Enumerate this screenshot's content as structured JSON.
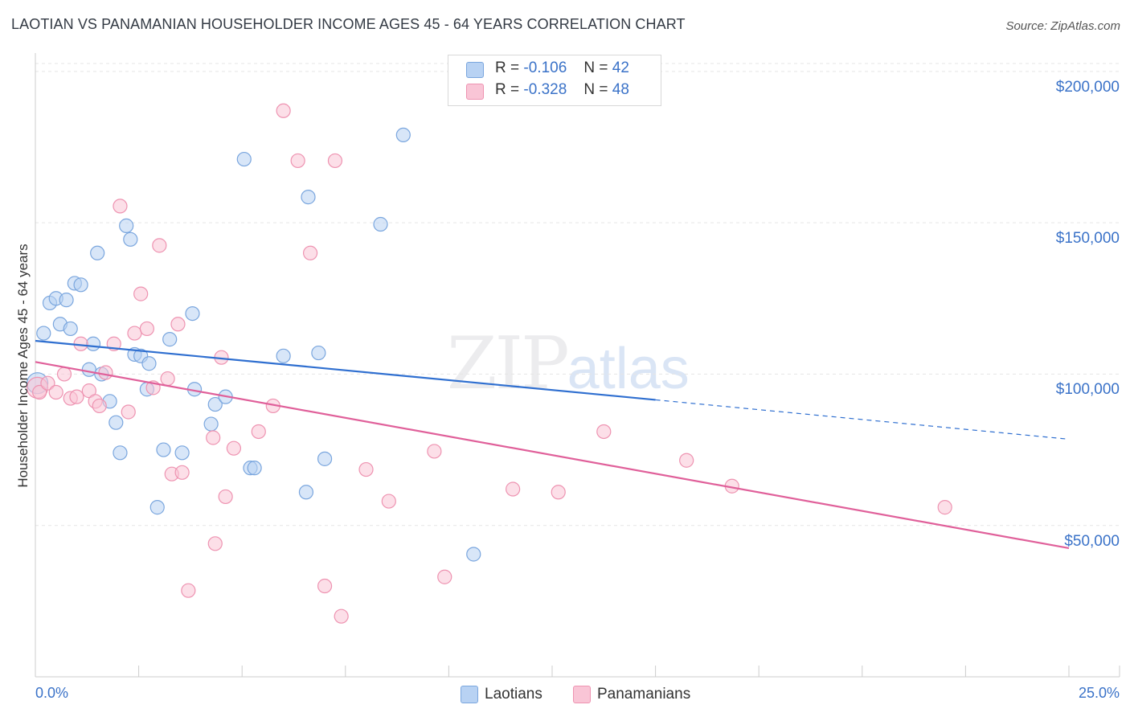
{
  "header": {
    "title": "LAOTIAN VS PANAMANIAN HOUSEHOLDER INCOME AGES 45 - 64 YEARS CORRELATION CHART",
    "source": "Source: ZipAtlas.com"
  },
  "watermark": {
    "zip": "ZIP",
    "atlas": "atlas"
  },
  "legend": {
    "rows": [
      {
        "r_label": "R =",
        "r_value": "-0.106",
        "n_label": "N =",
        "n_value": "42"
      },
      {
        "r_label": "R =",
        "r_value": "-0.328",
        "n_label": "N =",
        "n_value": "48"
      }
    ],
    "bottom": [
      "Laotians",
      "Panamanians"
    ]
  },
  "colors": {
    "laotian_fill": "#b8d2f3",
    "laotian_stroke": "#7aa6de",
    "laotian_line": "#2f6fd0",
    "panamanian_fill": "#f9c5d6",
    "panamanian_stroke": "#ee93b1",
    "panamanian_line": "#e0609a",
    "value_text": "#3a72c8",
    "grid": "#e5e5e5"
  },
  "chart_data": {
    "type": "scatter",
    "title": "LAOTIAN VS PANAMANIAN HOUSEHOLDER INCOME AGES 45 - 64 YEARS CORRELATION CHART",
    "xlabel": "",
    "ylabel": "Householder Income Ages 45 - 64 years",
    "xlim": [
      0,
      25
    ],
    "ylim": [
      0,
      205000
    ],
    "x_tick_labels": [
      "0.0%",
      "25.0%"
    ],
    "y_ticks": [
      50000,
      100000,
      150000,
      200000
    ],
    "y_tick_labels": [
      "$50,000",
      "$100,000",
      "$150,000",
      "$200,000"
    ],
    "grid": true,
    "legend_position": "top-center",
    "series": [
      {
        "name": "Laotians",
        "points": [
          [
            0.05,
            97000
          ],
          [
            0.2,
            113500
          ],
          [
            0.35,
            123500
          ],
          [
            0.5,
            125000
          ],
          [
            0.6,
            116500
          ],
          [
            0.75,
            124500
          ],
          [
            0.85,
            115000
          ],
          [
            0.95,
            130000
          ],
          [
            1.1,
            129500
          ],
          [
            1.3,
            101500
          ],
          [
            1.4,
            110000
          ],
          [
            1.5,
            140000
          ],
          [
            1.6,
            100000
          ],
          [
            1.8,
            91000
          ],
          [
            1.95,
            84000
          ],
          [
            2.05,
            74000
          ],
          [
            2.2,
            149000
          ],
          [
            2.3,
            144500
          ],
          [
            2.4,
            106500
          ],
          [
            2.55,
            106000
          ],
          [
            2.7,
            95000
          ],
          [
            2.75,
            103500
          ],
          [
            2.95,
            56000
          ],
          [
            3.1,
            75000
          ],
          [
            3.25,
            111500
          ],
          [
            3.55,
            74000
          ],
          [
            3.8,
            120000
          ],
          [
            3.85,
            95000
          ],
          [
            4.25,
            83500
          ],
          [
            4.35,
            90000
          ],
          [
            4.6,
            92500
          ],
          [
            5.05,
            171000
          ],
          [
            5.2,
            69000
          ],
          [
            5.3,
            69000
          ],
          [
            6.0,
            106000
          ],
          [
            6.55,
            61000
          ],
          [
            6.6,
            158500
          ],
          [
            6.85,
            107000
          ],
          [
            7.0,
            72000
          ],
          [
            8.35,
            149500
          ],
          [
            8.9,
            179000
          ],
          [
            10.6,
            40500
          ]
        ],
        "trend": {
          "x": [
            0.0,
            15.0
          ],
          "y": [
            111000,
            91500
          ],
          "dashed_extension": {
            "x": [
              15.0,
              25.0
            ],
            "y": [
              91500,
              78500
            ]
          }
        }
      },
      {
        "name": "Panamanians",
        "points": [
          [
            0.05,
            95500
          ],
          [
            0.1,
            94000
          ],
          [
            0.3,
            97000
          ],
          [
            0.5,
            94000
          ],
          [
            0.7,
            100000
          ],
          [
            0.85,
            92000
          ],
          [
            1.0,
            92500
          ],
          [
            1.1,
            110000
          ],
          [
            1.3,
            94500
          ],
          [
            1.45,
            91000
          ],
          [
            1.55,
            89500
          ],
          [
            1.7,
            100500
          ],
          [
            1.9,
            110000
          ],
          [
            2.05,
            155500
          ],
          [
            2.25,
            87500
          ],
          [
            2.4,
            113500
          ],
          [
            2.55,
            126500
          ],
          [
            2.7,
            115000
          ],
          [
            2.85,
            95500
          ],
          [
            3.0,
            142500
          ],
          [
            3.2,
            98500
          ],
          [
            3.3,
            67000
          ],
          [
            3.45,
            116500
          ],
          [
            3.55,
            67500
          ],
          [
            3.7,
            28500
          ],
          [
            4.3,
            79000
          ],
          [
            4.35,
            44000
          ],
          [
            4.5,
            105500
          ],
          [
            4.6,
            59500
          ],
          [
            4.8,
            75500
          ],
          [
            5.4,
            81000
          ],
          [
            5.75,
            89500
          ],
          [
            6.0,
            187000
          ],
          [
            6.35,
            170500
          ],
          [
            6.65,
            140000
          ],
          [
            7.0,
            30000
          ],
          [
            7.25,
            170500
          ],
          [
            7.4,
            20000
          ],
          [
            8.0,
            68500
          ],
          [
            8.55,
            58000
          ],
          [
            9.65,
            74500
          ],
          [
            9.9,
            33000
          ],
          [
            11.55,
            62000
          ],
          [
            12.65,
            61000
          ],
          [
            13.75,
            81000
          ],
          [
            15.75,
            71500
          ],
          [
            16.85,
            63000
          ],
          [
            22.0,
            56000
          ]
        ],
        "trend": {
          "x": [
            0.0,
            25.0
          ],
          "y": [
            104000,
            42500
          ]
        }
      }
    ]
  }
}
